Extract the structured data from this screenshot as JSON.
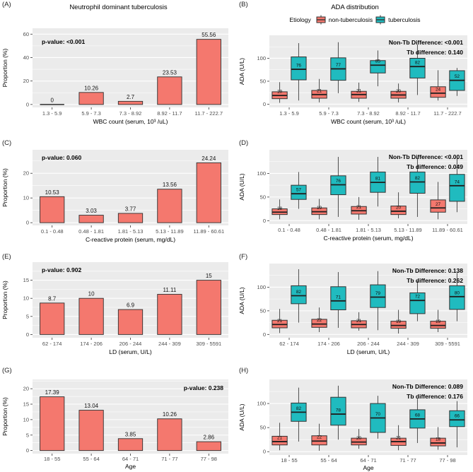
{
  "colors": {
    "non_tb": "#F4786E",
    "tb": "#20BBBF",
    "panel_bg": "#EBEBEB",
    "grid": "#FFFFFF",
    "axis_text": "#4D4D4D",
    "outline": "#333333",
    "text": "#000000"
  },
  "chart_data": [
    {
      "panel_label": "(A)",
      "type": "bar",
      "title": "Neutrophil dominant tuberculosis",
      "p_value": "p-value: <0.001",
      "p_value_pos": "left",
      "categories": [
        "1.3 - 5.9",
        "5.9 - 7.3",
        "7.3 - 8.92",
        "8.92 - 11.7",
        "11.7 - 222.7"
      ],
      "values": [
        0,
        10.26,
        2.7,
        23.53,
        55.56
      ],
      "xlabel": "WBC count (serum, 10³ /uL)",
      "ylabel": "Proportion (%)",
      "yticks": [
        0,
        20,
        40,
        60
      ],
      "ylim": [
        -2.5,
        65
      ],
      "grid": true
    },
    {
      "panel_label": "(B)",
      "type": "box",
      "title": "ADA distribution",
      "legend": {
        "title": "Etiology",
        "entries": [
          {
            "label": "non-tuberculosis",
            "color": "#F4786E"
          },
          {
            "label": "tuberculosis",
            "color": "#20BBBF"
          }
        ]
      },
      "annotations": [
        {
          "label": "Non-Tb Difference:",
          "value": "<0.001"
        },
        {
          "label": "Tb difference:",
          "value": "0.140"
        }
      ],
      "categories": [
        "1.3 - 5.9",
        "5.9 - 7.3",
        "7.3 - 8.92",
        "8.92 - 11.7",
        "11.7 - 222.7"
      ],
      "series": [
        {
          "name": "non-tuberculosis",
          "stats": [
            [
              3,
              12,
              19,
              27,
              48
            ],
            [
              4,
              13,
              21,
              30,
              55
            ],
            [
              5,
              13,
              21,
              28,
              47
            ],
            [
              4,
              13,
              20,
              28,
              45
            ],
            [
              8,
              15,
              24,
              38,
              74
            ]
          ]
        },
        {
          "name": "tuberculosis",
          "stats": [
            [
              8,
              53,
              76,
              103,
              133
            ],
            [
              24,
              52,
              77,
              101,
              135
            ],
            [
              39,
              68,
              85,
              95,
              117
            ],
            [
              20,
              57,
              82,
              100,
              130
            ],
            [
              18,
              30,
              52,
              73,
              79
            ]
          ]
        }
      ],
      "xlabel": "WBC count (serum, 10³ /uL)",
      "ylabel": "ADA (U/L)",
      "yticks": [
        0,
        50,
        100
      ],
      "ylim": [
        -7,
        150
      ],
      "grid": true
    },
    {
      "panel_label": "(C)",
      "type": "bar",
      "p_value": "p-value: 0.060",
      "p_value_pos": "left",
      "categories": [
        "0.1 - 0.48",
        "0.48 - 1.81",
        "1.81 - 5.13",
        "5.13 - 11.89",
        "11.89 - 60.61"
      ],
      "values": [
        10.53,
        3.03,
        3.77,
        13.56,
        24.24
      ],
      "xlabel": "C-reactive protein (serum, mg/dL)",
      "ylabel": "Proportion (%)",
      "yticks": [
        0,
        10,
        20
      ],
      "ylim": [
        -1.1,
        29.5
      ],
      "grid": true
    },
    {
      "panel_label": "(D)",
      "type": "box",
      "annotations": [
        {
          "label": "Non-Tb Difference:",
          "value": "<0.001"
        },
        {
          "label": "Tb difference:",
          "value": "0.049"
        }
      ],
      "categories": [
        "0.1 - 0.48",
        "0.48 - 1.81",
        "1.81 - 5.13",
        "5.13 - 11.89",
        "11.89 - 60.61"
      ],
      "series": [
        {
          "name": "non-tuberculosis",
          "stats": [
            [
              3,
              13,
              18,
              25,
              45
            ],
            [
              3,
              13,
              19,
              27,
              46
            ],
            [
              2,
              14,
              21,
              30,
              50
            ],
            [
              5,
              13,
              20,
              31,
              60
            ],
            [
              3,
              18,
              27,
              44,
              82
            ]
          ]
        },
        {
          "name": "tuberculosis",
          "stats": [
            [
              25,
              45,
              57,
              75,
              103
            ],
            [
              8,
              55,
              76,
              95,
              135
            ],
            [
              30,
              60,
              81,
              103,
              135
            ],
            [
              8,
              58,
              82,
              103,
              133
            ],
            [
              18,
              41,
              74,
              98,
              133
            ]
          ]
        }
      ],
      "xlabel": "C-reactive protein (serum, mg/dL)",
      "ylabel": "ADA (U/L)",
      "yticks": [
        0,
        50,
        100
      ],
      "ylim": [
        -7,
        150
      ],
      "grid": true
    },
    {
      "panel_label": "(E)",
      "type": "bar",
      "p_value": "p-value: 0.902",
      "p_value_pos": "left",
      "categories": [
        "62 - 174",
        "174 - 206",
        "206 - 244",
        "244 - 309",
        "309 - 5591"
      ],
      "values": [
        8.7,
        10,
        6.9,
        11.11,
        15
      ],
      "xlabel": "LD (serum, U/L)",
      "ylabel": "Proportion (%)",
      "yticks": [
        0,
        5,
        10,
        15
      ],
      "ylim": [
        -0.9,
        20
      ],
      "grid": true
    },
    {
      "panel_label": "(F)",
      "type": "box",
      "annotations": [
        {
          "label": "Non-Tb Difference:",
          "value": "0.138"
        },
        {
          "label": "Tb difference:",
          "value": "0.262"
        }
      ],
      "categories": [
        "62 - 174",
        "174 - 206",
        "206 - 244",
        "244 - 309",
        "309 - 5591"
      ],
      "series": [
        {
          "name": "non-tuberculosis",
          "stats": [
            [
              3,
              14,
              21,
              30,
              54
            ],
            [
              5,
              15,
              22,
              32,
              57
            ],
            [
              8,
              14,
              21,
              29,
              47
            ],
            [
              2,
              13,
              19,
              28,
              52
            ],
            [
              5,
              13,
              19,
              28,
              52
            ]
          ]
        },
        {
          "name": "tuberculosis",
          "stats": [
            [
              25,
              65,
              82,
              103,
              138
            ],
            [
              14,
              52,
              71,
              101,
              132
            ],
            [
              9,
              57,
              79,
              105,
              134
            ],
            [
              28,
              44,
              72,
              88,
              113
            ],
            [
              28,
              53,
              80,
              103,
              130
            ]
          ]
        }
      ],
      "xlabel": "LD (serum, U/L)",
      "ylabel": "ADA (U/L)",
      "yticks": [
        0,
        50,
        100
      ],
      "ylim": [
        -7,
        150
      ],
      "grid": true
    },
    {
      "panel_label": "(G)",
      "type": "bar",
      "p_value": "p-value: 0.238",
      "p_value_pos": "right",
      "categories": [
        "18 - 55",
        "55 - 64",
        "64 - 71",
        "71 - 77",
        "77 - 98"
      ],
      "values": [
        17.39,
        13.04,
        3.85,
        10.26,
        2.86
      ],
      "xlabel": "Age",
      "ylabel": "Proportion (%)",
      "yticks": [
        0,
        5,
        10,
        15,
        20
      ],
      "ylim": [
        -1,
        23
      ],
      "grid": true
    },
    {
      "panel_label": "(H)",
      "type": "box",
      "annotations": [
        {
          "label": "Non-Tb Difference:",
          "value": "0.089"
        },
        {
          "label": "Tb difference:",
          "value": "0.176"
        }
      ],
      "categories": [
        "18 - 55",
        "55 - 64",
        "64 - 71",
        "71 - 77",
        "77 - 98"
      ],
      "series": [
        {
          "name": "non-tuberculosis",
          "stats": [
            [
              3,
              14,
              21,
              32,
              60
            ],
            [
              2,
              14,
              22,
              33,
              58
            ],
            [
              6,
              14,
              20,
              28,
              47
            ],
            [
              3,
              13,
              21,
              28,
              55
            ],
            [
              4,
              12,
              18,
              28,
              51
            ]
          ]
        },
        {
          "name": "tuberculosis",
          "stats": [
            [
              21,
              63,
              82,
              101,
              133
            ],
            [
              25,
              55,
              78,
              113,
              137
            ],
            [
              27,
              40,
              70,
              100,
              116
            ],
            [
              18,
              49,
              68,
              87,
              110
            ],
            [
              9,
              52,
              66,
              85,
              105
            ]
          ]
        }
      ],
      "xlabel": "Age",
      "ylabel": "ADA (U/L)",
      "yticks": [
        0,
        50,
        100
      ],
      "ylim": [
        -7,
        150
      ],
      "grid": true
    }
  ]
}
